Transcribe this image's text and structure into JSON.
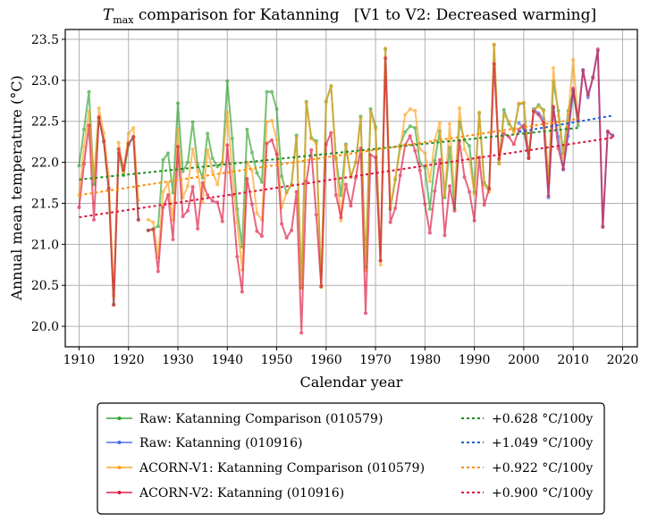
{
  "chart_data": {
    "type": "line",
    "title": {
      "var_main": "T",
      "var_sub": "max",
      "rest": " comparison for Katanning   [V1 to V2: Decreased warming]"
    },
    "xlabel": "Calendar year",
    "ylabel": "Annual mean temperature (°C)",
    "xlim": [
      1907.2,
      2023.0
    ],
    "ylim": [
      19.75,
      23.62
    ],
    "xticks": [
      1910,
      1920,
      1930,
      1940,
      1950,
      1960,
      1970,
      1980,
      1990,
      2000,
      2010,
      2020
    ],
    "xtick_labels": [
      "1910",
      "1920",
      "1930",
      "1940",
      "1950",
      "1960",
      "1970",
      "1980",
      "1990",
      "2000",
      "2010",
      "2020"
    ],
    "yticks": [
      20.0,
      20.5,
      21.0,
      21.5,
      22.0,
      22.5,
      23.0,
      23.5
    ],
    "ytick_labels": [
      "20.0",
      "20.5",
      "21.0",
      "21.5",
      "22.0",
      "22.5",
      "23.0",
      "23.5"
    ],
    "grid": true,
    "legend_position": "below",
    "series": [
      {
        "name": "Raw: Katanning Comparison (010579)",
        "color": "#2ca02c",
        "segments": [
          {
            "x": [
              1910,
              1911,
              1912,
              1913,
              1914,
              1915,
              1916,
              1917,
              1918,
              1919,
              1920,
              1921,
              1922
            ],
            "y": [
              21.96,
              22.4,
              22.86,
              21.73,
              22.54,
              22.25,
              21.68,
              20.27,
              22.11,
              21.84,
              22.21,
              22.31,
              21.3
            ]
          },
          {
            "x": [
              1924,
              1925,
              1926,
              1927,
              1928,
              1929,
              1930,
              1931,
              1932,
              1933,
              1934,
              1935,
              1936,
              1937,
              1938,
              1939,
              1940,
              1941,
              1942,
              1943,
              1944,
              1945,
              1946,
              1947,
              1948,
              1949,
              1950,
              1951,
              1952,
              1953,
              1954,
              1955,
              1956,
              1957,
              1958,
              1959,
              1960,
              1961,
              1962,
              1963,
              1964,
              1965,
              1966,
              1967,
              1968,
              1969,
              1970,
              1971,
              1972,
              1973,
              1974,
              1975,
              1976,
              1977,
              1978,
              1979,
              1980,
              1981,
              1982,
              1983,
              1984,
              1985,
              1986,
              1987,
              1988,
              1989,
              1990,
              1991,
              1992,
              1993,
              1994,
              1995,
              1996,
              1997,
              1998,
              1999,
              2000,
              2001,
              2002,
              2003,
              2004,
              2005,
              2006,
              2007,
              2008,
              2009,
              2010,
              2011
            ],
            "y": [
              21.17,
              21.19,
              21.22,
              22.03,
              22.11,
              21.63,
              22.72,
              21.89,
              22.0,
              22.49,
              21.97,
              21.81,
              22.35,
              22.05,
              21.95,
              22.0,
              22.99,
              22.29,
              21.43,
              20.97,
              22.4,
              22.12,
              21.87,
              21.76,
              22.86,
              22.86,
              22.65,
              21.83,
              21.63,
              21.73,
              22.33,
              20.47,
              22.74,
              22.3,
              22.26,
              20.48,
              22.74,
              22.93,
              22.05,
              21.6,
              22.22,
              21.82,
              22.0,
              22.56,
              20.72,
              22.65,
              22.43,
              20.8,
              23.38,
              21.43,
              21.79,
              22.21,
              22.37,
              22.44,
              22.42,
              21.99,
              21.94,
              21.43,
              22.02,
              22.38,
              21.57,
              22.18,
              21.44,
              22.49,
              22.27,
              22.2,
              21.64,
              22.6,
              21.75,
              21.68,
              23.43,
              21.99,
              22.64,
              22.47,
              22.39,
              22.71,
              22.72,
              22.05,
              22.63,
              22.7,
              22.64,
              21.75,
              22.98,
              22.63,
              22.11,
              22.63,
              22.86,
              22.45
            ]
          }
        ]
      },
      {
        "name": "Raw: Katanning (010916)",
        "color": "#4169e1",
        "segments": [
          {
            "x": [
              1999,
              2000,
              2001,
              2002,
              2003,
              2004,
              2005,
              2006,
              2007,
              2008,
              2009,
              2010,
              2011,
              2012,
              2013,
              2014,
              2015,
              2016,
              2017,
              2018
            ],
            "y": [
              22.48,
              22.41,
              22.06,
              22.65,
              22.6,
              22.53,
              21.57,
              22.66,
              22.31,
              21.91,
              22.32,
              22.88,
              22.53,
              23.13,
              22.79,
              23.04,
              23.36,
              21.22,
              22.37,
              22.33
            ]
          }
        ]
      },
      {
        "name": "ACORN-V1: Katanning Comparison (010579)",
        "color": "#ff9f1a",
        "segments": [
          {
            "x": [
              1910,
              1911,
              1912,
              1913,
              1914,
              1915,
              1916,
              1917,
              1918,
              1919,
              1920,
              1921,
              1922
            ],
            "y": [
              21.6,
              22.19,
              22.62,
              21.8,
              22.66,
              22.36,
              21.83,
              20.37,
              22.24,
              21.88,
              22.35,
              22.42,
              21.54
            ]
          },
          {
            "x": [
              1924,
              1925,
              1926,
              1927,
              1928,
              1929,
              1930,
              1931,
              1932,
              1933,
              1934,
              1935,
              1936,
              1937,
              1938,
              1939,
              1940,
              1941,
              1942,
              1943,
              1944,
              1945,
              1946,
              1947,
              1948,
              1949,
              1950,
              1951,
              1952,
              1953,
              1954,
              1955,
              1956,
              1957,
              1958,
              1959,
              1960,
              1961,
              1962,
              1963,
              1964,
              1965,
              1966,
              1967,
              1968,
              1969,
              1970,
              1971,
              1972,
              1973,
              1974,
              1975,
              1976,
              1977,
              1978,
              1979,
              1980,
              1981,
              1982,
              1983,
              1984,
              1985,
              1986,
              1987,
              1988,
              1989,
              1990,
              1991,
              1992,
              1993,
              1994,
              1995,
              1996,
              1997,
              1998,
              1999,
              2000,
              2001,
              2002,
              2003,
              2004,
              2005,
              2006,
              2007,
              2008,
              2009,
              2010,
              2011
            ],
            "y": [
              21.3,
              21.27,
              20.84,
              21.64,
              21.75,
              21.3,
              22.4,
              21.57,
              21.71,
              22.16,
              21.89,
              21.51,
              22.15,
              21.89,
              21.73,
              22.0,
              22.61,
              21.89,
              21.27,
              20.69,
              22.0,
              21.9,
              21.38,
              21.3,
              22.49,
              22.51,
              22.28,
              21.45,
              21.63,
              21.73,
              22.3,
              20.47,
              22.73,
              22.29,
              22.23,
              20.48,
              22.75,
              22.93,
              22.03,
              21.29,
              22.2,
              21.82,
              22.0,
              22.54,
              20.68,
              22.62,
              22.41,
              20.75,
              23.39,
              21.45,
              21.81,
              22.17,
              22.58,
              22.65,
              22.63,
              22.16,
              22.11,
              21.77,
              22.27,
              22.48,
              21.6,
              22.47,
              21.59,
              22.66,
              22.16,
              22.03,
              21.61,
              22.61,
              21.72,
              21.64,
              23.44,
              21.98,
              22.58,
              22.5,
              22.36,
              22.72,
              22.73,
              22.06,
              22.64,
              22.68,
              22.63,
              21.76,
              23.15,
              22.57,
              22.06,
              22.58,
              23.25,
              22.49
            ]
          }
        ]
      },
      {
        "name": "ACORN-V2: Katanning (010916)",
        "color": "#dc143c",
        "segments": [
          {
            "x": [
              1910,
              1911,
              1912,
              1913,
              1914,
              1915,
              1916,
              1917,
              1918,
              1919,
              1920,
              1921,
              1922
            ],
            "y": [
              21.45,
              21.98,
              22.45,
              21.3,
              22.55,
              22.26,
              21.68,
              20.26,
              22.16,
              21.91,
              22.23,
              22.31,
              21.3
            ]
          },
          {
            "x": [
              1924,
              1925,
              1926,
              1927,
              1928,
              1929,
              1930,
              1931,
              1932,
              1933,
              1934,
              1935,
              1936,
              1937,
              1938,
              1939,
              1940,
              1941,
              1942,
              1943,
              1944,
              1945,
              1946,
              1947,
              1948,
              1949,
              1950,
              1951,
              1952,
              1953,
              1954,
              1955,
              1956,
              1957,
              1958,
              1959,
              1960,
              1961,
              1962,
              1963,
              1964,
              1965,
              1966,
              1967,
              1968,
              1969,
              1970,
              1971,
              1972,
              1973,
              1974,
              1975,
              1976,
              1977,
              1978,
              1979,
              1980,
              1981,
              1982,
              1983,
              1984,
              1985,
              1986,
              1987,
              1988,
              1989,
              1990,
              1991,
              1992,
              1993,
              1994,
              1995,
              1996,
              1997,
              1998,
              1999,
              2000,
              2001,
              2002,
              2003,
              2004,
              2005,
              2006,
              2007,
              2008,
              2009,
              2010,
              2011,
              2012,
              2013,
              2014,
              2015,
              2016,
              2017,
              2018
            ],
            "y": [
              21.17,
              21.18,
              20.67,
              21.45,
              21.6,
              21.06,
              22.19,
              21.34,
              21.41,
              21.7,
              21.19,
              21.75,
              21.6,
              21.53,
              21.51,
              21.28,
              22.21,
              21.6,
              20.85,
              20.42,
              21.8,
              21.49,
              21.16,
              21.1,
              22.23,
              22.27,
              22.1,
              21.25,
              21.08,
              21.17,
              21.64,
              19.92,
              21.77,
              22.15,
              21.36,
              20.49,
              22.22,
              22.36,
              21.6,
              21.33,
              21.73,
              21.47,
              21.81,
              22.17,
              20.16,
              22.09,
              22.06,
              20.8,
              23.27,
              21.27,
              21.44,
              21.84,
              22.21,
              22.32,
              22.14,
              21.9,
              21.49,
              21.14,
              21.65,
              22.03,
              21.11,
              21.71,
              21.41,
              22.26,
              21.82,
              21.64,
              21.29,
              22.06,
              21.48,
              21.68,
              23.2,
              22.04,
              22.35,
              22.31,
              22.22,
              22.4,
              22.45,
              22.05,
              22.62,
              22.58,
              22.48,
              21.59,
              22.68,
              22.17,
              21.92,
              22.41,
              22.9,
              22.51,
              23.12,
              22.82,
              23.03,
              23.38,
              21.21,
              22.38,
              22.32
            ]
          }
        ]
      }
    ],
    "trends": [
      {
        "label": "+0.628 °C/100y",
        "color": "#228b22",
        "x": [
          1910,
          2011
        ],
        "y": [
          21.79,
          22.42
        ]
      },
      {
        "label": "+1.049 °C/100y",
        "color": "#1f5fd6",
        "x": [
          1999,
          2018
        ],
        "y": [
          22.37,
          22.57
        ]
      },
      {
        "label": "+0.922 °C/100y",
        "color": "#ff8c00",
        "x": [
          1910,
          2011
        ],
        "y": [
          21.6,
          22.53
        ]
      },
      {
        "label": "+0.900 °C/100y",
        "color": "#dc143c",
        "x": [
          1910,
          2018
        ],
        "y": [
          21.33,
          22.3
        ]
      }
    ]
  }
}
